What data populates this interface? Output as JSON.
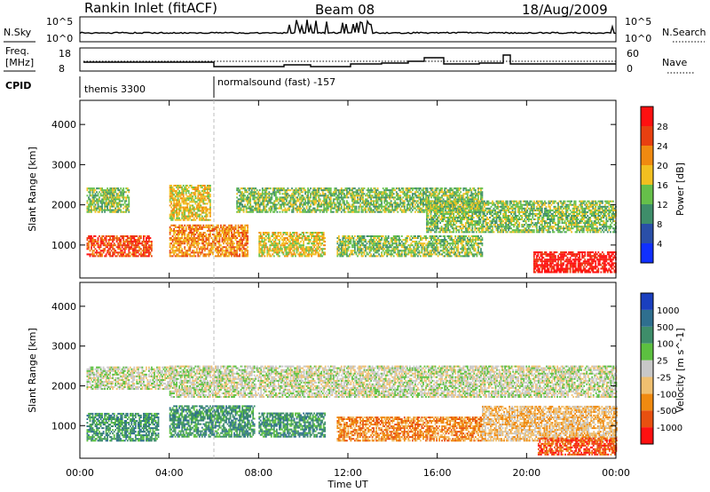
{
  "header": {
    "station": "Rankin Inlet (fitACF)",
    "beam": "Beam 08",
    "date": "18/Aug/2009"
  },
  "noise_panel": {
    "left_label": "N.Sky",
    "left_ticks": [
      "10^5",
      "10^0"
    ],
    "right_ticks": [
      "10^5",
      "10^0"
    ],
    "right_label": "N.Search"
  },
  "freq_panel": {
    "label_line1": "Freq.",
    "label_line2": "[MHz]",
    "left_ticks": [
      "18",
      "8"
    ],
    "right_ticks": [
      "60",
      "0"
    ],
    "right_label": "Nave"
  },
  "cpid_panel": {
    "label": "CPID",
    "segments": [
      {
        "start_hour": 0,
        "text": "themis 3300"
      },
      {
        "start_hour": 6,
        "text": "normalsound (fast) -157"
      }
    ]
  },
  "chart_data": [
    {
      "type": "heatmap",
      "title": "Power",
      "ylabel": "Slant Range [km]",
      "xlabel": "",
      "x_range_hours": [
        0,
        24
      ],
      "ylim": [
        180,
        4600
      ],
      "y_ticks": [
        "1000",
        "2000",
        "3000",
        "4000"
      ],
      "colorbar_label": "Power [dB]",
      "colorbar_ticks": [
        "4",
        "8",
        "12",
        "16",
        "20",
        "24",
        "28"
      ],
      "colorbar_colors": [
        "#1030ff",
        "#2a4fa8",
        "#3e8e6a",
        "#66c04a",
        "#f2c020",
        "#f08a10",
        "#e84010",
        "#ff1010"
      ],
      "echo_bands": [
        {
          "t0": 0.3,
          "t1": 3.2,
          "r0": 700,
          "r1": 1200,
          "level": 6
        },
        {
          "t0": 0.3,
          "t1": 2.2,
          "r0": 1800,
          "r1": 2400,
          "level": 3
        },
        {
          "t0": 4.0,
          "t1": 5.8,
          "r0": 1600,
          "r1": 2500,
          "level": 4
        },
        {
          "t0": 4.0,
          "t1": 7.5,
          "r0": 700,
          "r1": 1500,
          "level": 5
        },
        {
          "t0": 7.0,
          "t1": 18.0,
          "r0": 1800,
          "r1": 2400,
          "level": 3
        },
        {
          "t0": 8.0,
          "t1": 11.0,
          "r0": 700,
          "r1": 1300,
          "level": 4
        },
        {
          "t0": 11.5,
          "t1": 18.0,
          "r0": 700,
          "r1": 1200,
          "level": 3
        },
        {
          "t0": 15.5,
          "t1": 24.0,
          "r0": 1300,
          "r1": 2100,
          "level": 3
        },
        {
          "t0": 20.3,
          "t1": 24.0,
          "r0": 300,
          "r1": 800,
          "level": 7
        }
      ]
    },
    {
      "type": "heatmap",
      "title": "Velocity",
      "ylabel": "Slant Range [km]",
      "xlabel": "Time UT",
      "x_range_hours": [
        0,
        24
      ],
      "ylim": [
        180,
        4600
      ],
      "y_ticks": [
        "1000",
        "2000",
        "3000",
        "4000"
      ],
      "x_ticks": [
        "00:00",
        "04:00",
        "08:00",
        "12:00",
        "16:00",
        "20:00",
        "00:00"
      ],
      "colorbar_label": "Velocity [m s^-1]",
      "colorbar_ticks": [
        "1000",
        "500",
        "100",
        "25",
        "-25",
        "-100",
        "-500",
        "-1000"
      ],
      "colorbar_colors": [
        "#1a3fbf",
        "#2f6f8f",
        "#3e8e6a",
        "#5cc040",
        "#c8c8c8",
        "#f0c070",
        "#f08a10",
        "#e85010",
        "#ff1010"
      ],
      "echo_bands": [
        {
          "t0": 0.3,
          "t1": 4.0,
          "r0": 1900,
          "r1": 2450,
          "level": 4
        },
        {
          "t0": 4.0,
          "t1": 24.0,
          "r0": 1700,
          "r1": 2500,
          "level": 4
        },
        {
          "t0": 0.3,
          "t1": 3.5,
          "r0": 600,
          "r1": 1300,
          "level": 2
        },
        {
          "t0": 4.0,
          "t1": 7.8,
          "r0": 700,
          "r1": 1500,
          "level": 2
        },
        {
          "t0": 8.0,
          "t1": 11.0,
          "r0": 700,
          "r1": 1300,
          "level": 2
        },
        {
          "t0": 11.5,
          "t1": 18.0,
          "r0": 600,
          "r1": 1200,
          "level": 6
        },
        {
          "t0": 18.0,
          "t1": 24.0,
          "r0": 600,
          "r1": 1500,
          "level": 5
        },
        {
          "t0": 20.5,
          "t1": 24.0,
          "r0": 250,
          "r1": 700,
          "level": 7
        }
      ]
    }
  ]
}
